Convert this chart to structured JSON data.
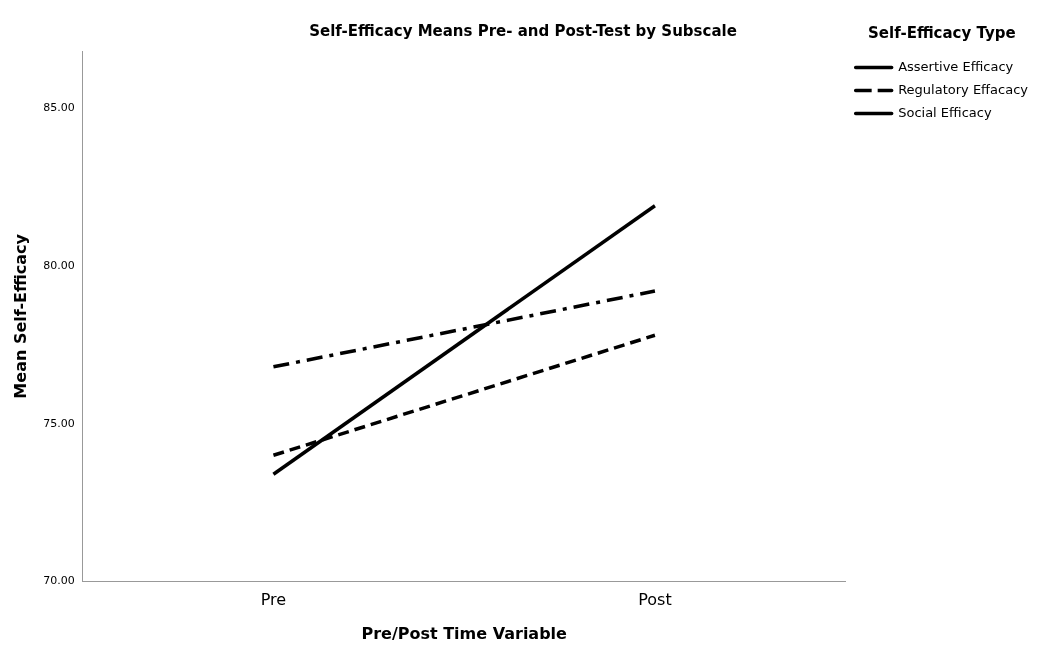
{
  "chart_data": {
    "type": "line",
    "title": "Self-Efficacy Means Pre- and Post-Test by Subscale",
    "xlabel": "Pre/Post Time Variable",
    "ylabel": "Mean Self-Efficacy",
    "legend_title": "Self-Efficacy Type",
    "categories": [
      "Pre",
      "Post"
    ],
    "series": [
      {
        "name": "Assertive Efficacy",
        "color": "#000000",
        "line_style": "solid",
        "values": [
          73.4,
          81.9
        ]
      },
      {
        "name": "Regulatory Effacacy",
        "color": "#000000",
        "line_style": "dashdot",
        "values": [
          76.8,
          79.2
        ]
      },
      {
        "name": "Social Efficacy",
        "color": "#000000",
        "line_style": "dashed",
        "values": [
          74.0,
          77.8
        ]
      }
    ],
    "ylim": [
      70,
      86.8
    ],
    "yticks": [
      {
        "value": 70,
        "label": "70.00"
      },
      {
        "value": 75,
        "label": "75.00"
      },
      {
        "value": 80,
        "label": "80.00"
      },
      {
        "value": 85,
        "label": "85.00"
      }
    ],
    "grid": false,
    "legend": "top right",
    "marker": "none"
  }
}
